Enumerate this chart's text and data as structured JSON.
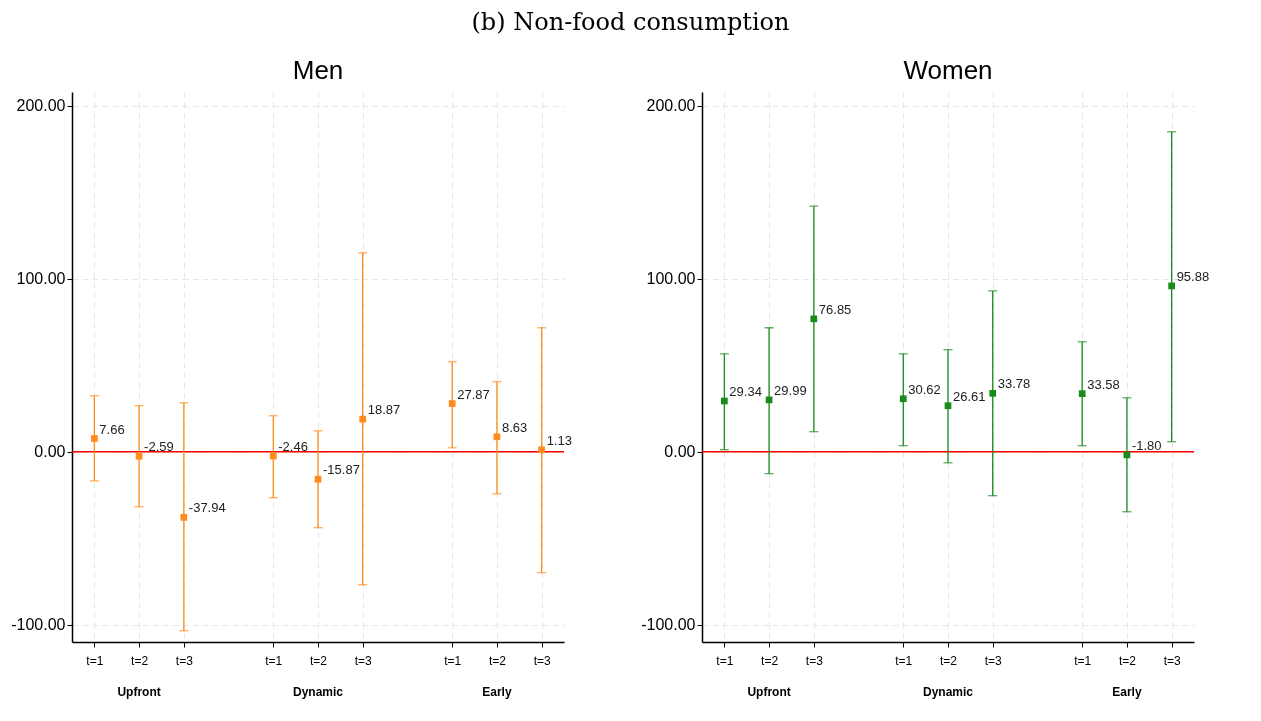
{
  "chart_data": [
    {
      "type": "other",
      "title": "(b) Non-food consumption"
    },
    {
      "type": "scatter",
      "title": "Men",
      "categories": [
        "t=1",
        "t=2",
        "t=3",
        null,
        "t=1",
        "t=2",
        "t=3",
        null,
        "t=1",
        "t=2",
        "t=3"
      ],
      "annotations": [
        "Upfront",
        "Dynamic",
        "Early"
      ],
      "series": [
        {
          "color": "#ff8c1a",
          "values": [
            7.66,
            -2.59,
            -37.94,
            null,
            -2.46,
            -15.87,
            18.87,
            null,
            27.87,
            8.63,
            1.13
          ],
          "value_labels": [
            "7.66",
            "-2.59",
            "-37.94",
            null,
            "-2.46",
            "-15.87",
            "18.87",
            null,
            "27.87",
            "8.63",
            "1.13"
          ],
          "errors": [
            [
              -16.8,
              32.4
            ],
            [
              -31.8,
              26.6
            ],
            [
              -103.5,
              28.3
            ],
            null,
            [
              -26.6,
              20.8
            ],
            [
              -43.9,
              12.1
            ],
            [
              -76.9,
              115
            ],
            null,
            [
              2.3,
              52
            ],
            [
              -24.3,
              40.5
            ],
            [
              -69.9,
              71.7
            ]
          ]
        }
      ],
      "ylim": [
        -110,
        208
      ],
      "yticks": [
        {
          "value": -100,
          "label": "-100.00"
        },
        {
          "value": 0,
          "label": "0.00"
        },
        {
          "value": 100,
          "label": "100.00"
        },
        {
          "value": 200,
          "label": "200.00"
        }
      ],
      "grid": true,
      "marker": "square",
      "ref_lines": [
        {
          "axis": "y",
          "value": 0,
          "color": "#ff0000"
        }
      ]
    },
    {
      "type": "scatter",
      "title": "Women",
      "categories": [
        "t=1",
        "t=2",
        "t=3",
        null,
        "t=1",
        "t=2",
        "t=3",
        null,
        "t=1",
        "t=2",
        "t=3"
      ],
      "annotations": [
        "Upfront",
        "Dynamic",
        "Early"
      ],
      "series": [
        {
          "color": "#1a8a1a",
          "values": [
            29.34,
            29.99,
            76.85,
            null,
            30.62,
            26.61,
            33.78,
            null,
            33.58,
            -1.8,
            95.88
          ],
          "value_labels": [
            "29.34",
            "29.99",
            "76.85",
            null,
            "30.62",
            "26.61",
            "33.78",
            null,
            "33.58",
            "-1.80",
            "95.88"
          ],
          "errors": [
            [
              1.2,
              56.6
            ],
            [
              -12.7,
              71.7
            ],
            [
              11.6,
              142
            ],
            null,
            [
              3.5,
              56.6
            ],
            [
              -6.4,
              59
            ],
            [
              -25.4,
              93
            ],
            null,
            [
              3.5,
              63.6
            ],
            [
              -34.7,
              31.2
            ],
            [
              5.8,
              185
            ]
          ]
        }
      ],
      "ylim": [
        -110,
        208
      ],
      "yticks": [
        {
          "value": -100,
          "label": "-100.00"
        },
        {
          "value": 0,
          "label": "0.00"
        },
        {
          "value": 100,
          "label": "100.00"
        },
        {
          "value": 200,
          "label": "200.00"
        }
      ],
      "grid": true,
      "marker": "square",
      "ref_lines": [
        {
          "axis": "y",
          "value": 0,
          "color": "#ff0000"
        }
      ]
    }
  ]
}
